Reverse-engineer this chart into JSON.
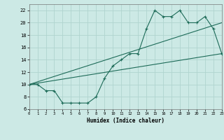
{
  "xlabel": "Humidex (Indice chaleur)",
  "bg_color": "#cce9e5",
  "grid_color": "#b0d4cf",
  "line_color": "#1d6b58",
  "xlim": [
    0,
    23
  ],
  "ylim": [
    6,
    23
  ],
  "xticks": [
    0,
    1,
    2,
    3,
    4,
    5,
    6,
    7,
    8,
    9,
    10,
    11,
    12,
    13,
    14,
    15,
    16,
    17,
    18,
    19,
    20,
    21,
    22,
    23
  ],
  "yticks": [
    6,
    8,
    10,
    12,
    14,
    16,
    18,
    20,
    22
  ],
  "curve1_x": [
    0,
    1,
    2,
    3,
    4,
    5,
    6,
    7,
    8,
    9,
    10,
    11,
    12,
    13,
    14,
    15,
    16,
    17,
    18,
    19,
    20,
    21,
    22,
    23
  ],
  "curve1_y": [
    10,
    10,
    9,
    9,
    7,
    7,
    7,
    7,
    8,
    11,
    13,
    14,
    15,
    15,
    19,
    22,
    21,
    21,
    22,
    20,
    20,
    21,
    19,
    15
  ],
  "line1_x": [
    0,
    23
  ],
  "line1_y": [
    10,
    15
  ],
  "line2_x": [
    0,
    23
  ],
  "line2_y": [
    10,
    20
  ]
}
